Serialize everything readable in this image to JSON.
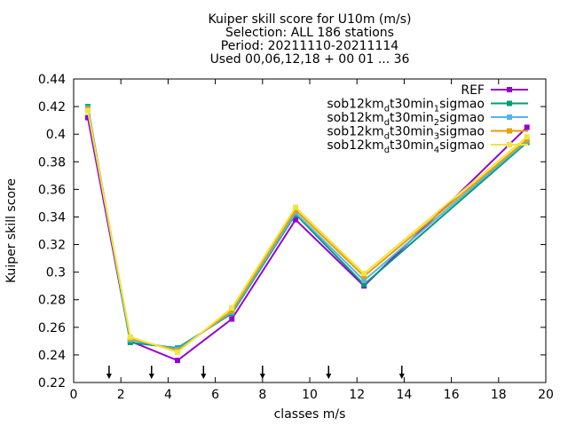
{
  "chart_data": {
    "type": "line",
    "title_lines": [
      "Kuiper skill score  for U10m (m/s)",
      "Selection: ALL    186 stations",
      "Period: 20211110-20211114",
      "Used 00,06,12,18 + 00 01 ... 36"
    ],
    "xlabel": "classes m/s",
    "ylabel": "Kuiper skill score",
    "xlim": [
      0,
      20
    ],
    "ylim": [
      0.22,
      0.44
    ],
    "xticks": [
      0,
      2,
      4,
      6,
      8,
      10,
      12,
      14,
      16,
      18,
      20
    ],
    "yticks": [
      0.22,
      0.24,
      0.26,
      0.28,
      0.3,
      0.32,
      0.34,
      0.36,
      0.38,
      0.4,
      0.42,
      0.44
    ],
    "class_markers_x": [
      1.5,
      3.3,
      5.5,
      8.0,
      10.8,
      13.9
    ],
    "x": [
      0.6,
      2.4,
      4.4,
      6.7,
      9.4,
      12.3,
      19.2
    ],
    "legend_position": "top-right",
    "series": [
      {
        "name": "REF",
        "name_parts": [
          "REF"
        ],
        "color": "#9400d3",
        "values": [
          0.412,
          0.25,
          0.236,
          0.266,
          0.338,
          0.29,
          0.405
        ]
      },
      {
        "name": "sob12km_dt30min_1sigmao",
        "name_parts": [
          "sob12km",
          "d",
          "t30min",
          "1",
          "sigmao"
        ],
        "color": "#009e73",
        "values": [
          0.42,
          0.249,
          0.245,
          0.27,
          0.342,
          0.291,
          0.394
        ]
      },
      {
        "name": "sob12km_dt30min_2sigmao",
        "name_parts": [
          "sob12km",
          "d",
          "t30min",
          "2",
          "sigmao"
        ],
        "color": "#56b4e9",
        "values": [
          0.419,
          0.251,
          0.244,
          0.271,
          0.343,
          0.294,
          0.395
        ]
      },
      {
        "name": "sob12km_dt30min_3sigmao",
        "name_parts": [
          "sob12km",
          "d",
          "t30min",
          "3",
          "sigmao"
        ],
        "color": "#e69f00",
        "values": [
          0.418,
          0.252,
          0.243,
          0.272,
          0.345,
          0.297,
          0.396
        ]
      },
      {
        "name": "sob12km_dt30min_4sigmao",
        "name_parts": [
          "sob12km",
          "d",
          "t30min",
          "4",
          "sigmao"
        ],
        "color": "#f0e442",
        "values": [
          0.417,
          0.253,
          0.242,
          0.274,
          0.347,
          0.299,
          0.398
        ]
      }
    ]
  }
}
